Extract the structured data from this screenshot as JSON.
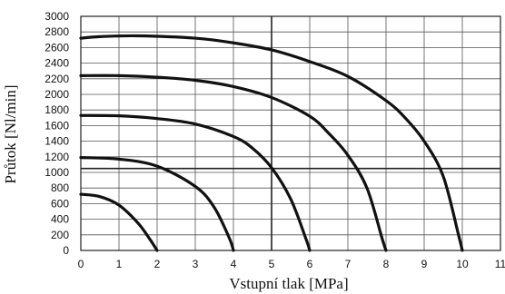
{
  "chart_data": {
    "type": "line",
    "xlabel": "Vstupní tlak [MPa]",
    "ylabel": "Průtok [Nl/min]",
    "xlim": [
      0,
      11
    ],
    "ylim": [
      0,
      3000
    ],
    "xticks": [
      "0",
      "1",
      "2",
      "3",
      "4",
      "5",
      "6",
      "7",
      "8",
      "9",
      "10",
      "11"
    ],
    "yticks": [
      "0",
      "200",
      "400",
      "600",
      "800",
      "1000",
      "1200",
      "1400",
      "1600",
      "1800",
      "2000",
      "2200",
      "2400",
      "2600",
      "2800",
      "3000"
    ],
    "grid": true,
    "reference_lines": {
      "x": 5,
      "y": 1050
    },
    "series": [
      {
        "x": [
          0,
          0.5,
          1,
          1.5,
          1.8,
          2.0
        ],
        "y": [
          720,
          690,
          580,
          350,
          150,
          0
        ]
      },
      {
        "x": [
          0,
          1,
          2,
          3,
          3.5,
          3.9,
          4.0
        ],
        "y": [
          1190,
          1170,
          1080,
          820,
          550,
          150,
          0
        ]
      },
      {
        "x": [
          0,
          1,
          2,
          3,
          4,
          4.5,
          5,
          5.5,
          5.9,
          6.0
        ],
        "y": [
          1730,
          1725,
          1690,
          1620,
          1460,
          1310,
          1060,
          660,
          150,
          0
        ]
      },
      {
        "x": [
          0,
          1,
          2,
          3,
          4,
          5,
          6,
          6.5,
          7,
          7.5,
          7.9,
          8.0
        ],
        "y": [
          2240,
          2240,
          2220,
          2180,
          2100,
          1960,
          1720,
          1500,
          1220,
          800,
          150,
          0
        ]
      },
      {
        "x": [
          0,
          0.5,
          1.5,
          3,
          4,
          5,
          6,
          7,
          8,
          8.5,
          9,
          9.5,
          9.9,
          10.0
        ],
        "y": [
          2720,
          2740,
          2750,
          2720,
          2660,
          2570,
          2420,
          2230,
          1920,
          1700,
          1400,
          950,
          200,
          0
        ]
      }
    ]
  }
}
